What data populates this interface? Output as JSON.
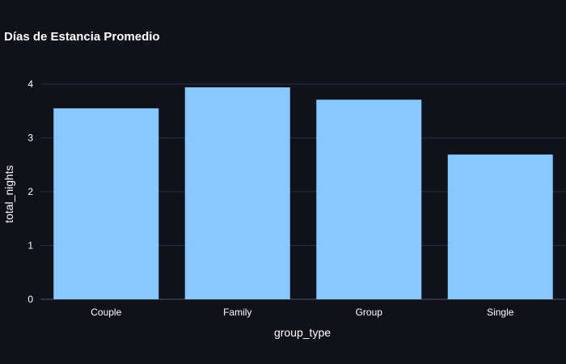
{
  "chart_data": {
    "type": "bar",
    "title": "Días de Estancia Promedio",
    "xlabel": "group_type",
    "ylabel": "total_nights",
    "categories": [
      "Couple",
      "Family",
      "Group",
      "Single"
    ],
    "values": [
      3.55,
      3.94,
      3.71,
      2.69
    ],
    "ylim": [
      0,
      4.3
    ],
    "yticks": [
      0,
      1,
      2,
      3,
      4
    ],
    "grid": true,
    "legend": "none",
    "bar_color": "#87c8ff",
    "background_color": "#0f121a",
    "grid_color": "#283040"
  }
}
